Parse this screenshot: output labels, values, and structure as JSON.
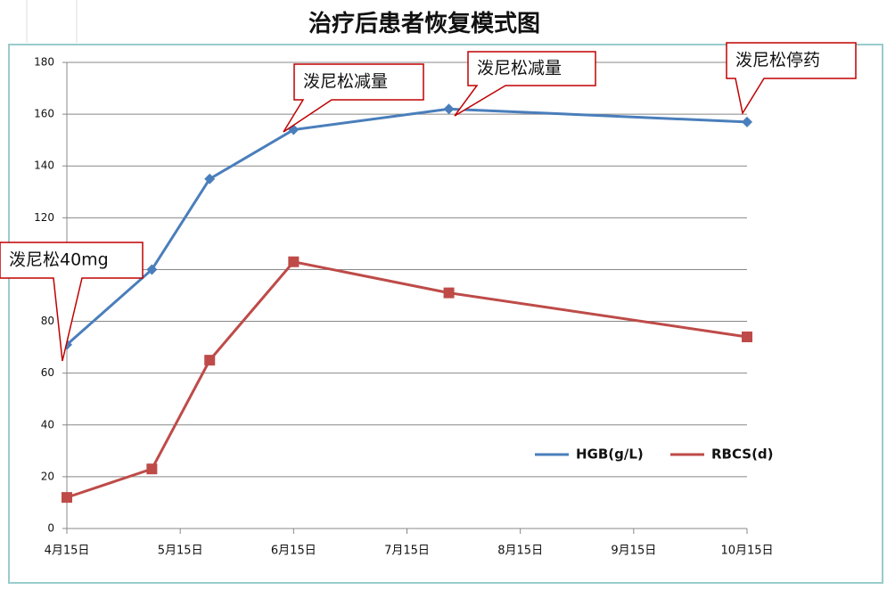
{
  "chart_data": {
    "type": "line",
    "title": "治疗后患者恢复模式图",
    "x": [
      4,
      4.75,
      5.26,
      6,
      7.37,
      10
    ],
    "xlim": [
      4,
      10
    ],
    "xticks": [
      {
        "value": 4,
        "label": "4月15日"
      },
      {
        "value": 5,
        "label": "5月15日"
      },
      {
        "value": 6,
        "label": "6月15日"
      },
      {
        "value": 7,
        "label": "7月15日"
      },
      {
        "value": 8,
        "label": "8月15日"
      },
      {
        "value": 9,
        "label": "9月15日"
      },
      {
        "value": 10,
        "label": "10月15日"
      }
    ],
    "ylim": [
      0,
      180
    ],
    "yticks": [
      0,
      20,
      40,
      60,
      80,
      100,
      120,
      140,
      160,
      180
    ],
    "grid": true,
    "series": [
      {
        "name": "HGB(g/L)",
        "color": "#4a7ebb",
        "marker": "diamond",
        "values": [
          71,
          100,
          135,
          154,
          162,
          157
        ]
      },
      {
        "name": "RBCS(d)",
        "color": "#be4b48",
        "marker": "square",
        "values": [
          12,
          23,
          65,
          103,
          91,
          74
        ]
      }
    ],
    "annotations": [
      "泼尼松40mg",
      "泼尼松减量",
      "泼尼松减量",
      "泼尼松停药"
    ]
  }
}
